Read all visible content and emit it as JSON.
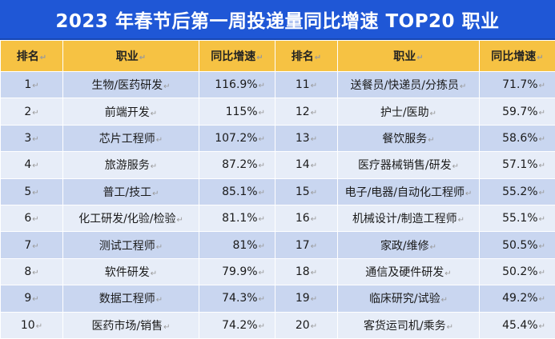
{
  "title": "2023 年春节后第一周投递量同比增速 TOP20 职业",
  "para_mark": "↵",
  "headers": {
    "rank": "排名",
    "job": "职业",
    "rate": "同比增速",
    "rank2": "排名",
    "job2": "职业",
    "rate2": "同比增速"
  },
  "rows": [
    {
      "rank": "1",
      "job": "生物/医药研发",
      "rate": "116.9%",
      "rank2": "11",
      "job2": "送餐员/快递员/分拣员",
      "rate2": "71.7%"
    },
    {
      "rank": "2",
      "job": "前端开发",
      "rate": "115%",
      "rank2": "12",
      "job2": "护士/医助",
      "rate2": "59.7%"
    },
    {
      "rank": "3",
      "job": "芯片工程师",
      "rate": "107.2%",
      "rank2": "13",
      "job2": "餐饮服务",
      "rate2": "58.6%"
    },
    {
      "rank": "4",
      "job": "旅游服务",
      "rate": "87.2%",
      "rank2": "14",
      "job2": "医疗器械销售/研发",
      "rate2": "57.1%"
    },
    {
      "rank": "5",
      "job": "普工/技工",
      "rate": "85.1%",
      "rank2": "15",
      "job2": "电子/电器/自动化工程师",
      "rate2": "55.2%"
    },
    {
      "rank": "6",
      "job": "化工研发/化验/检验",
      "rate": "81.1%",
      "rank2": "16",
      "job2": "机械设计/制造工程师",
      "rate2": "55.1%"
    },
    {
      "rank": "7",
      "job": "测试工程师",
      "rate": "81%",
      "rank2": "17",
      "job2": "家政/维修",
      "rate2": "50.5%"
    },
    {
      "rank": "8",
      "job": "软件研发",
      "rate": "79.9%",
      "rank2": "18",
      "job2": "通信及硬件研发",
      "rate2": "50.2%"
    },
    {
      "rank": "9",
      "job": "数据工程师",
      "rate": "74.3%",
      "rank2": "19",
      "job2": "临床研究/试验",
      "rate2": "49.2%"
    },
    {
      "rank": "10",
      "job": "医药市场/销售",
      "rate": "74.2%",
      "rank2": "20",
      "job2": "客货运司机/乘务",
      "rate2": "45.4%"
    }
  ]
}
